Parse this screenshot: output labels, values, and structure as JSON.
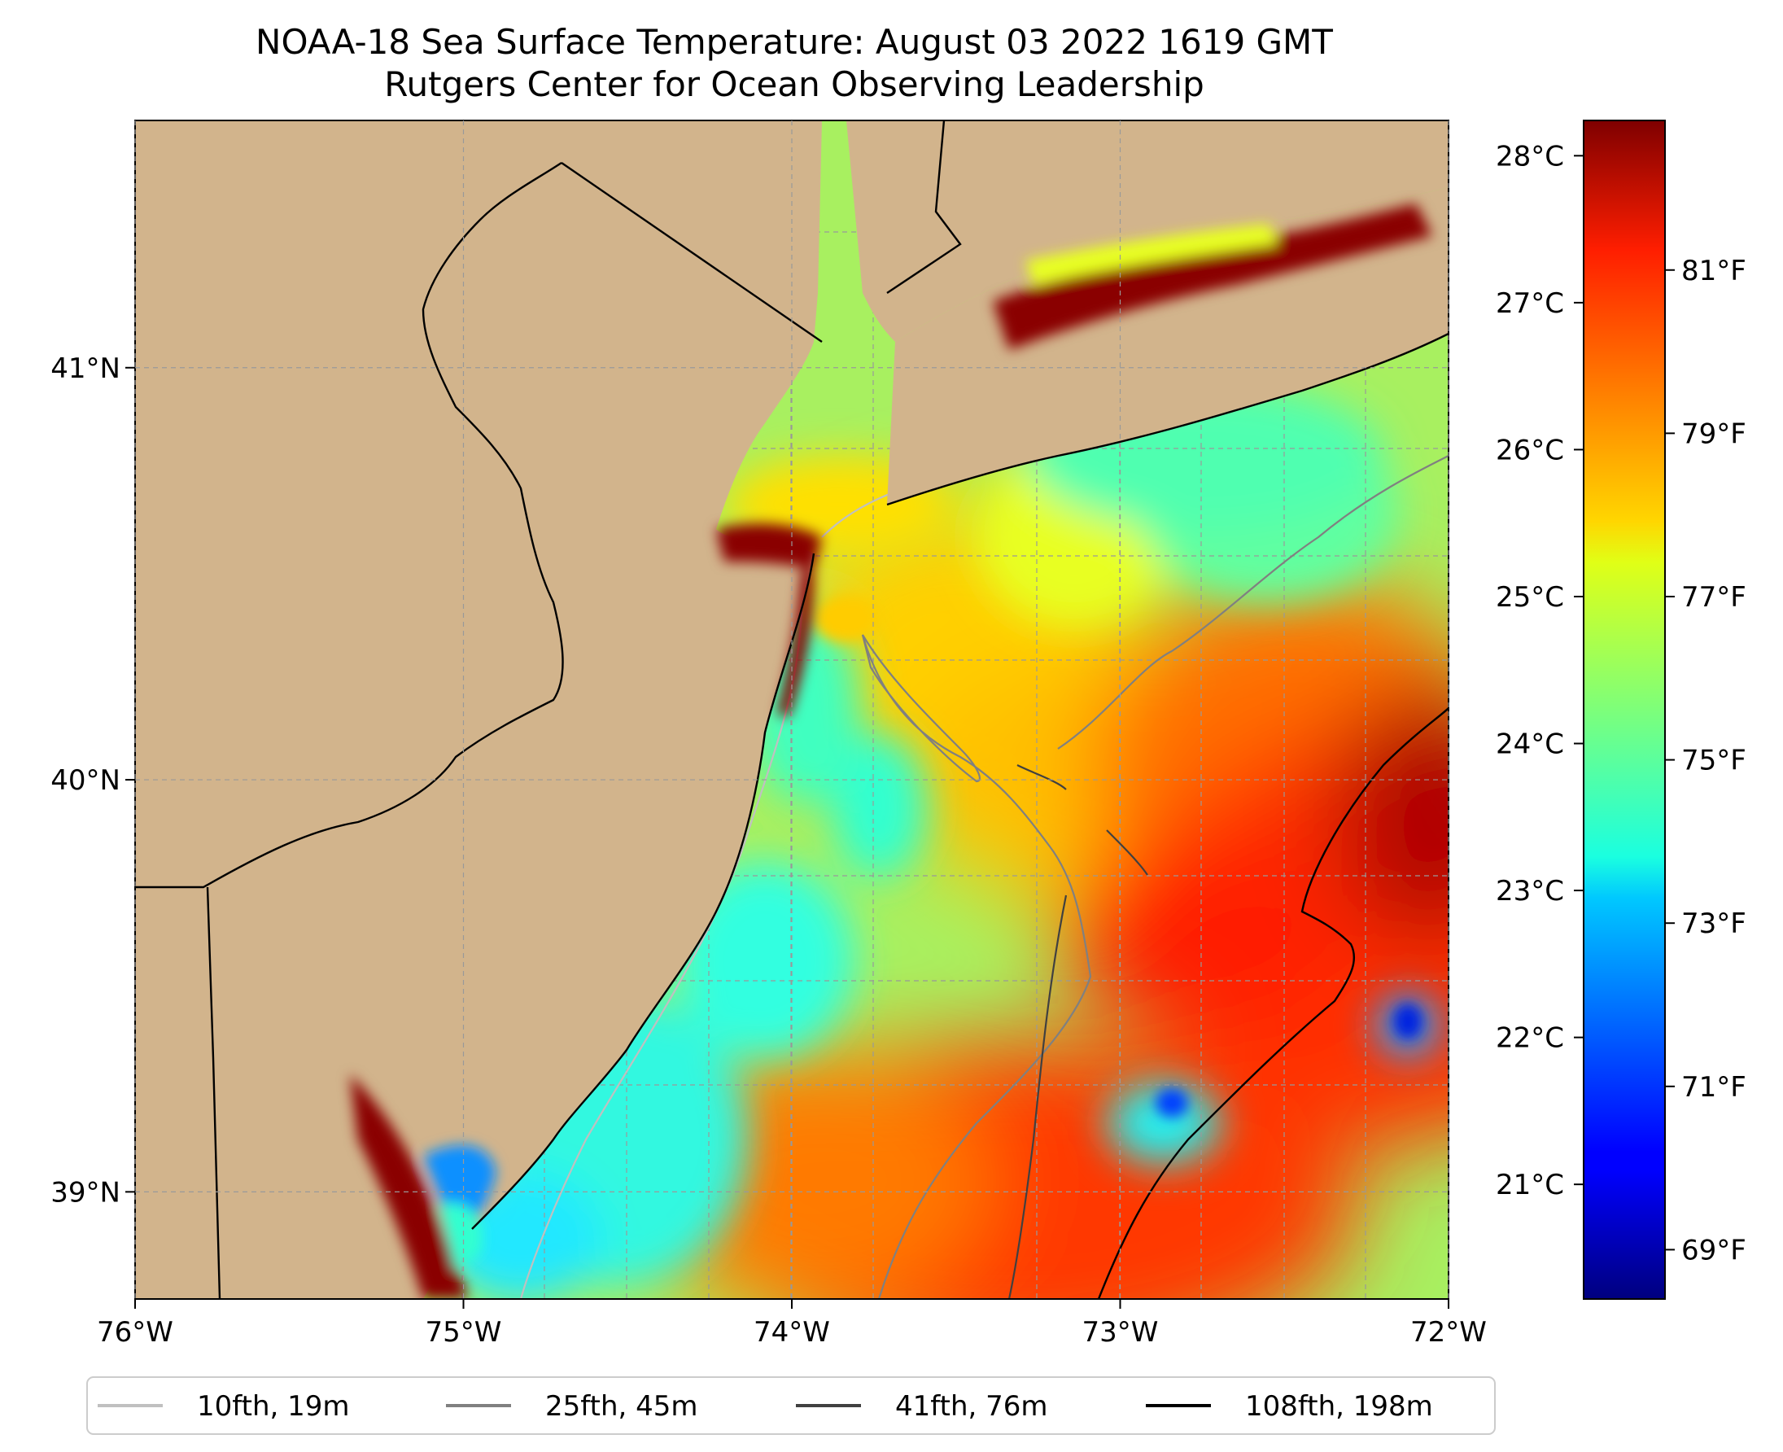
{
  "title": {
    "line1": "NOAA-18 Sea Surface Temperature: August 03 2022 1619 GMT",
    "line2": "Rutgers Center for Ocean Observing Leadership"
  },
  "map": {
    "lon_range": [
      -76,
      -72
    ],
    "lat_range": [
      38.74,
      41.6
    ],
    "lon_ticks": [
      {
        "value": -76,
        "label": "76°W"
      },
      {
        "value": -75,
        "label": "75°W"
      },
      {
        "value": -74,
        "label": "74°W"
      },
      {
        "value": -73,
        "label": "73°W"
      },
      {
        "value": -72,
        "label": "72°W"
      }
    ],
    "lat_ticks": [
      {
        "value": 41,
        "label": "41°N"
      },
      {
        "value": 40,
        "label": "40°N"
      },
      {
        "value": 39,
        "label": "39°N"
      }
    ],
    "colors": {
      "land": "#d2b48c",
      "ocean_base": "#a8f060",
      "border": "#000000",
      "grid": "#999999"
    }
  },
  "colorbar": {
    "celsius_ticks": [
      {
        "value": 28,
        "label": "28°C"
      },
      {
        "value": 27,
        "label": "27°C"
      },
      {
        "value": 26,
        "label": "26°C"
      },
      {
        "value": 25,
        "label": "25°C"
      },
      {
        "value": 24,
        "label": "24°C"
      },
      {
        "value": 23,
        "label": "23°C"
      },
      {
        "value": 22,
        "label": "22°C"
      },
      {
        "value": 21,
        "label": "21°C"
      }
    ],
    "fahrenheit_ticks": [
      {
        "value": 81,
        "label": "81°F"
      },
      {
        "value": 79,
        "label": "79°F"
      },
      {
        "value": 77,
        "label": "77°F"
      },
      {
        "value": 75,
        "label": "75°F"
      },
      {
        "value": 73,
        "label": "73°F"
      },
      {
        "value": 71,
        "label": "71°F"
      },
      {
        "value": 69,
        "label": "69°F"
      }
    ],
    "range_c": [
      20.22,
      28.24
    ],
    "colormap": "jet"
  },
  "legend": {
    "entries": [
      {
        "label": "10fth, 19m",
        "color": "#c0c0c0"
      },
      {
        "label": "25fth, 45m",
        "color": "#808080"
      },
      {
        "label": "41fth, 76m",
        "color": "#404040"
      },
      {
        "label": "108fth, 198m",
        "color": "#000000"
      }
    ]
  }
}
